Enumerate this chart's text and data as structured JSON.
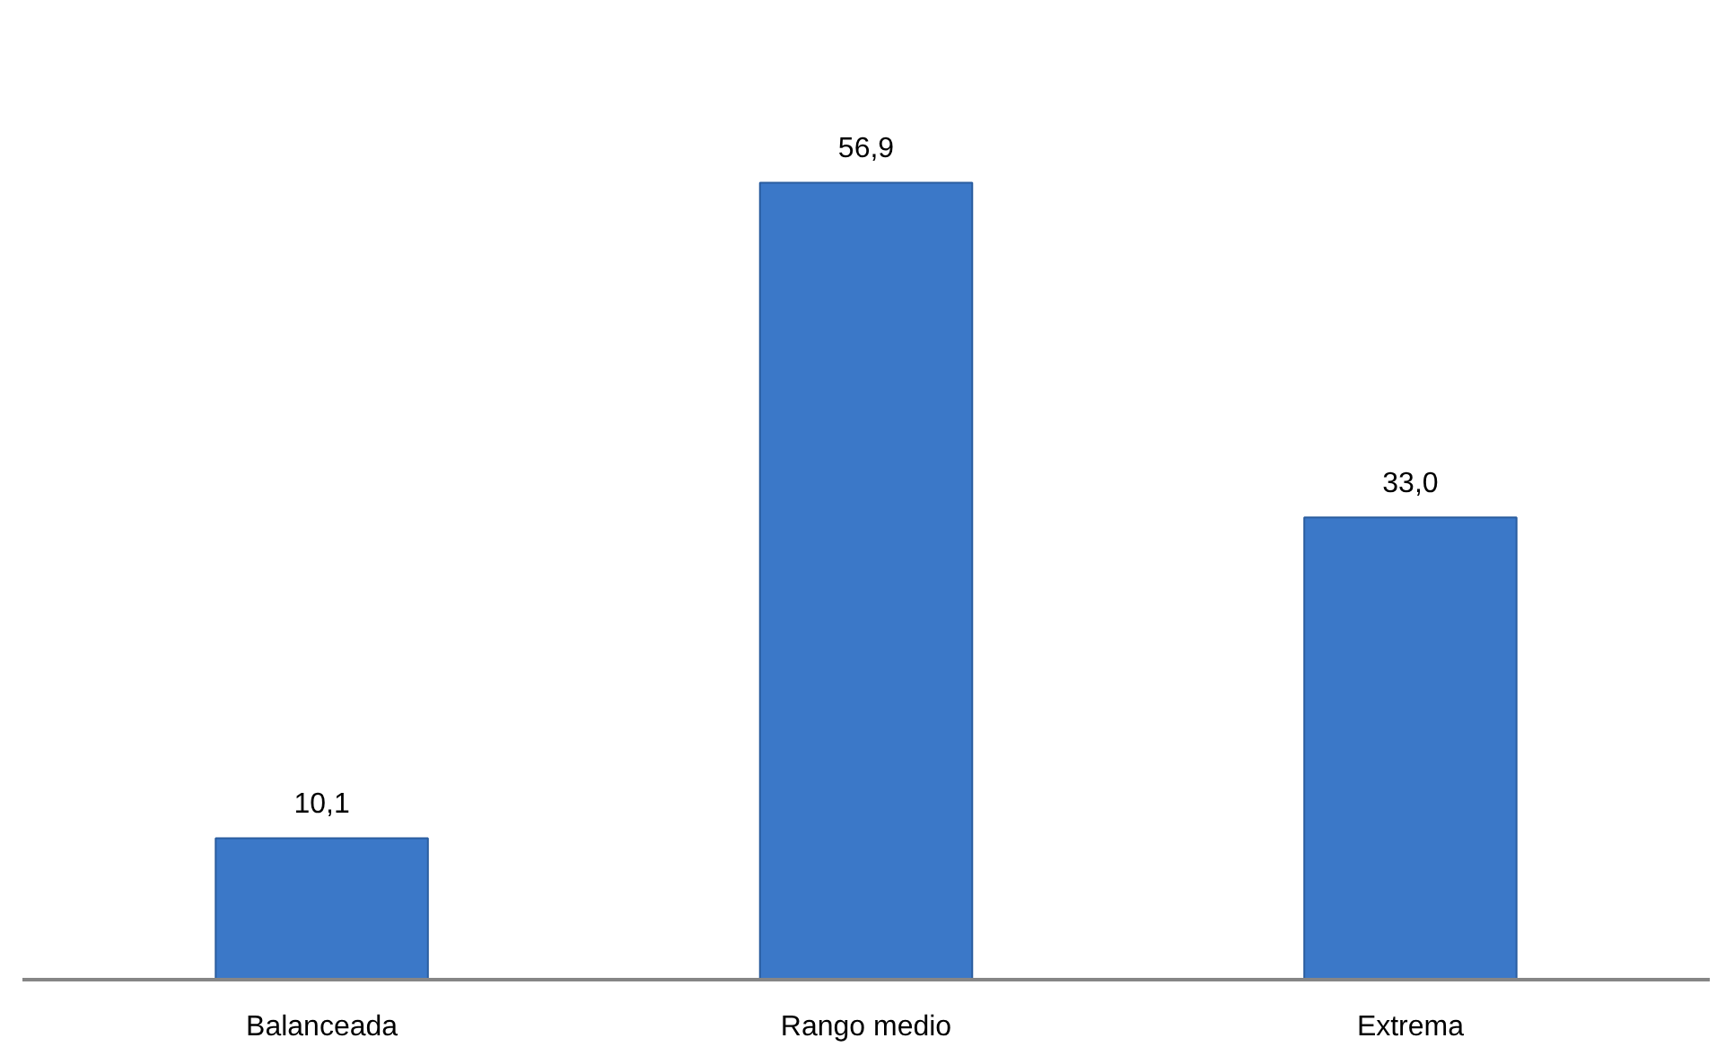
{
  "chart_data": {
    "type": "bar",
    "categories": [
      "Balanceada",
      "Rango medio",
      "Extrema"
    ],
    "values": [
      10.1,
      56.9,
      33.0
    ],
    "value_labels": [
      "10,1",
      "56,9",
      "33,0"
    ],
    "color": "#3b78c8",
    "grid": false
  }
}
